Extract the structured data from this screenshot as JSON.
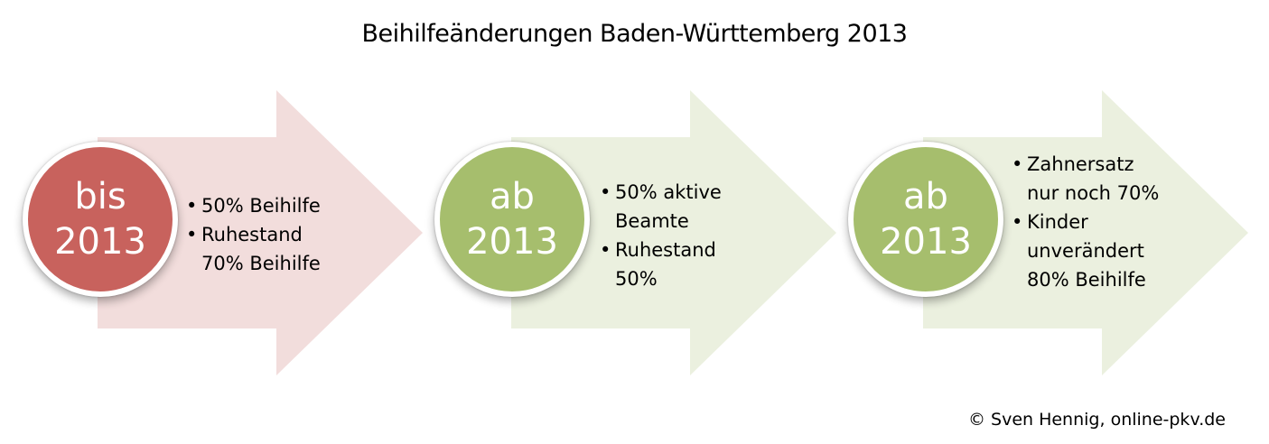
{
  "title": "Beihilfeänderungen Baden-Württemberg 2013",
  "steps": [
    {
      "word": "bis",
      "year": "2013",
      "circle_color": "#c8625d",
      "arrow_color": "#f2dddc",
      "bullets": [
        "50% Beihilfe",
        "Ruhestand 70% Beihilfe"
      ]
    },
    {
      "word": "ab",
      "year": "2013",
      "circle_color": "#a6be6d",
      "arrow_color": "#ebf0df",
      "bullets": [
        "50% aktive Beamte",
        "Ruhestand 50%"
      ]
    },
    {
      "word": "ab",
      "year": "2013",
      "circle_color": "#a6be6d",
      "arrow_color": "#ebf0df",
      "bullets": [
        "Zahnersatz nur noch 70%",
        "Kinder unverändert 80% Beihilfe"
      ]
    }
  ],
  "copyright": "© Sven Hennig, online-pkv.de"
}
